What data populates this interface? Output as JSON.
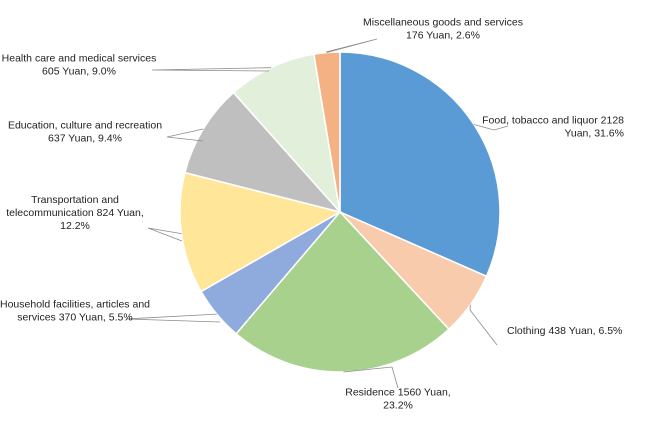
{
  "chart_data": {
    "type": "pie",
    "title": "",
    "slices": [
      {
        "label_lines": [
          "Food, tobacco and liquor 2128",
          "Yuan, 31.6%"
        ],
        "value": 2128,
        "percent": 31.6,
        "color": "#5B9BD5"
      },
      {
        "label_lines": [
          "Clothing 438 Yuan, 6.5%"
        ],
        "value": 438,
        "percent": 6.5,
        "color": "#F8CBAD"
      },
      {
        "label_lines": [
          "Residence 1560 Yuan,",
          "23.2%"
        ],
        "value": 1560,
        "percent": 23.2,
        "color": "#A9D18E"
      },
      {
        "label_lines": [
          "Household facilities, articles and",
          "services 370 Yuan, 5.5%"
        ],
        "value": 370,
        "percent": 5.5,
        "color": "#8FAADC"
      },
      {
        "label_lines": [
          "Transportation and",
          "telecommunication 824 Yuan,",
          "12.2%"
        ],
        "value": 824,
        "percent": 12.2,
        "color": "#FFE699"
      },
      {
        "label_lines": [
          "Education, culture and recreation",
          "637 Yuan, 9.4%"
        ],
        "value": 637,
        "percent": 9.4,
        "color": "#BFBFBF"
      },
      {
        "label_lines": [
          "Health care and medical services",
          "605 Yuan, 9.0%"
        ],
        "value": 605,
        "percent": 9.0,
        "color": "#E2EFDA"
      },
      {
        "label_lines": [
          "Miscellaneous goods and services",
          "176 Yuan, 2.6%"
        ],
        "value": 176,
        "percent": 2.6,
        "color": "#F4B183"
      }
    ]
  }
}
